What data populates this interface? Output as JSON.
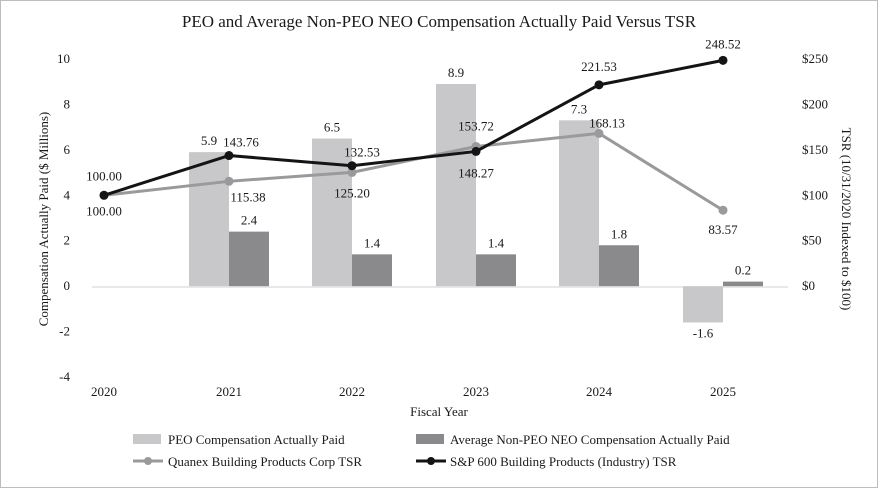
{
  "chart_data": {
    "type": "bar+line",
    "title": "PEO and Average Non-PEO NEO Compensation Actually Paid Versus TSR",
    "xlabel": "Fiscal Year",
    "ylabel_left": "Compensation Actually Paid ($ Millions)",
    "ylabel_right": "TSR (10/31/2020 Indexed to $100)",
    "categories": [
      "2020",
      "2021",
      "2022",
      "2023",
      "2024",
      "2025"
    ],
    "ylim_left": [
      -4,
      10
    ],
    "left_ticks": [
      "10",
      "8",
      "6",
      "4",
      "2",
      "0",
      "-2",
      "-4"
    ],
    "left_tick_values": [
      10,
      8,
      6,
      4,
      2,
      0,
      -2,
      -4
    ],
    "ylim_right": [
      0,
      250
    ],
    "right_ticks": [
      "$250",
      "$200",
      "$150",
      "$100",
      "$50",
      "$0"
    ],
    "right_tick_values": [
      250,
      200,
      150,
      100,
      50,
      0
    ],
    "bar_series": [
      {
        "name": "PEO Compensation Actually Paid",
        "color": "#c8c8ca",
        "values": [
          null,
          5.9,
          6.5,
          8.9,
          7.3,
          -1.6
        ],
        "labels": [
          "",
          "5.9",
          "6.5",
          "8.9",
          "7.3",
          "-1.6"
        ]
      },
      {
        "name": "Average Non-PEO NEO Compensation Actually Paid",
        "color": "#8a8a8d",
        "values": [
          null,
          2.4,
          1.4,
          1.4,
          1.8,
          0.2
        ],
        "labels": [
          "",
          "2.4",
          "1.4",
          "1.4",
          "1.8",
          "0.2"
        ]
      }
    ],
    "line_series": [
      {
        "name": "Quanex Building Products Corp TSR",
        "color": "#9a9a9c",
        "values": [
          100.0,
          115.38,
          125.2,
          153.72,
          168.13,
          83.57
        ],
        "labels": [
          "100.00",
          "115.38",
          "125.20",
          "153.72",
          "168.13",
          "83.57"
        ]
      },
      {
        "name": "S&P 600 Building Products (Industry) TSR",
        "color": "#141414",
        "values": [
          100.0,
          143.76,
          132.53,
          148.27,
          221.53,
          248.52
        ],
        "labels": [
          "100.00",
          "143.76",
          "132.53",
          "148.27",
          "221.53",
          "248.52"
        ]
      }
    ],
    "legend": {
      "placement": "bottom",
      "items": [
        "PEO Compensation Actually Paid",
        "Average Non-PEO NEO Compensation Actually Paid",
        "Quanex Building Products Corp TSR",
        "S&P 600 Building Products (Industry) TSR"
      ]
    }
  }
}
